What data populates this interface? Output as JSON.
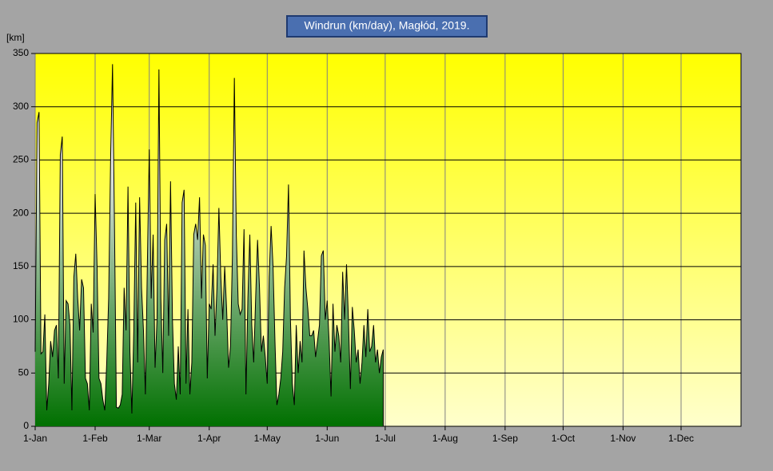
{
  "chart_data": {
    "type": "area",
    "title": "Windrun (km/day),  Magłód, 2019.",
    "y_label": "[km]",
    "x": [
      0,
      1,
      2,
      3,
      4,
      5,
      6,
      7,
      8,
      9,
      10,
      11,
      12,
      13,
      14,
      15,
      16,
      17,
      18,
      19,
      20,
      21,
      22,
      23,
      24,
      25,
      26,
      27,
      28,
      29,
      30,
      31,
      32,
      33,
      34,
      35,
      36,
      37,
      38,
      39,
      40,
      41,
      42,
      43,
      44,
      45,
      46,
      47,
      48,
      49,
      50,
      51,
      52,
      53,
      54,
      55,
      56,
      57,
      58,
      59,
      60,
      61,
      62,
      63,
      64,
      65,
      66,
      67,
      68,
      69,
      70,
      71,
      72,
      73,
      74,
      75,
      76,
      77,
      78,
      79,
      80,
      81,
      82,
      83,
      84,
      85,
      86,
      87,
      88,
      89,
      90,
      91,
      92,
      93,
      94,
      95,
      96,
      97,
      98,
      99,
      100,
      101,
      102,
      103,
      104,
      105,
      106,
      107,
      108,
      109,
      110,
      111,
      112,
      113,
      114,
      115,
      116,
      117,
      118,
      119,
      120,
      121,
      122,
      123,
      124,
      125,
      126,
      127,
      128,
      129,
      130,
      131,
      132,
      133,
      134,
      135,
      136,
      137,
      138,
      139,
      140,
      141,
      142,
      143,
      144,
      145,
      146,
      147,
      148,
      149,
      150,
      151,
      152,
      153,
      154,
      155,
      156,
      157,
      158,
      159,
      160,
      161,
      162,
      163,
      164,
      165,
      166,
      167,
      168,
      169,
      170,
      171,
      172,
      173,
      174,
      175,
      176,
      177,
      178,
      179,
      180
    ],
    "series": [
      {
        "name": "Windrun",
        "color": "#000000",
        "values": [
          70,
          285,
          295,
          68,
          70,
          105,
          15,
          40,
          80,
          65,
          90,
          95,
          45,
          255,
          272,
          40,
          118,
          115,
          95,
          15,
          140,
          162,
          120,
          90,
          138,
          130,
          45,
          40,
          15,
          115,
          88,
          218,
          150,
          45,
          40,
          25,
          15,
          60,
          120,
          250,
          340,
          190,
          18,
          17,
          20,
          30,
          130,
          90,
          225,
          70,
          12,
          90,
          210,
          60,
          215,
          130,
          90,
          30,
          150,
          260,
          120,
          180,
          55,
          100,
          335,
          120,
          50,
          175,
          190,
          85,
          230,
          100,
          40,
          25,
          75,
          30,
          210,
          222,
          40,
          110,
          30,
          60,
          180,
          190,
          175,
          215,
          120,
          180,
          170,
          45,
          115,
          110,
          152,
          85,
          130,
          205,
          140,
          100,
          150,
          110,
          55,
          75,
          160,
          327,
          180,
          115,
          105,
          110,
          185,
          30,
          120,
          180,
          95,
          60,
          120,
          175,
          130,
          70,
          85,
          65,
          40,
          140,
          188,
          150,
          80,
          20,
          30,
          45,
          70,
          130,
          160,
          227,
          100,
          40,
          20,
          95,
          50,
          80,
          60,
          165,
          130,
          110,
          85,
          85,
          90,
          65,
          80,
          95,
          160,
          165,
          100,
          118,
          80,
          28,
          115,
          70,
          95,
          85,
          60,
          145,
          100,
          152,
          100,
          35,
          112,
          90,
          60,
          72,
          40,
          60,
          95,
          65,
          110,
          70,
          75,
          95,
          60,
          72,
          50,
          65,
          72
        ]
      }
    ],
    "xlim": [
      0,
      365
    ],
    "ylim": [
      0,
      350
    ],
    "xticks": [
      {
        "value": 0,
        "label": "1-Jan"
      },
      {
        "value": 31,
        "label": "1-Feb"
      },
      {
        "value": 59,
        "label": "1-Mar"
      },
      {
        "value": 90,
        "label": "1-Apr"
      },
      {
        "value": 120,
        "label": "1-May"
      },
      {
        "value": 151,
        "label": "1-Jun"
      },
      {
        "value": 181,
        "label": "1-Jul"
      },
      {
        "value": 212,
        "label": "1-Aug"
      },
      {
        "value": 243,
        "label": "1-Sep"
      },
      {
        "value": 273,
        "label": "1-Oct"
      },
      {
        "value": 304,
        "label": "1-Nov"
      },
      {
        "value": 334,
        "label": "1-Dec"
      }
    ],
    "yticks": [
      0,
      50,
      100,
      150,
      200,
      250,
      300,
      350
    ],
    "grid": true
  }
}
